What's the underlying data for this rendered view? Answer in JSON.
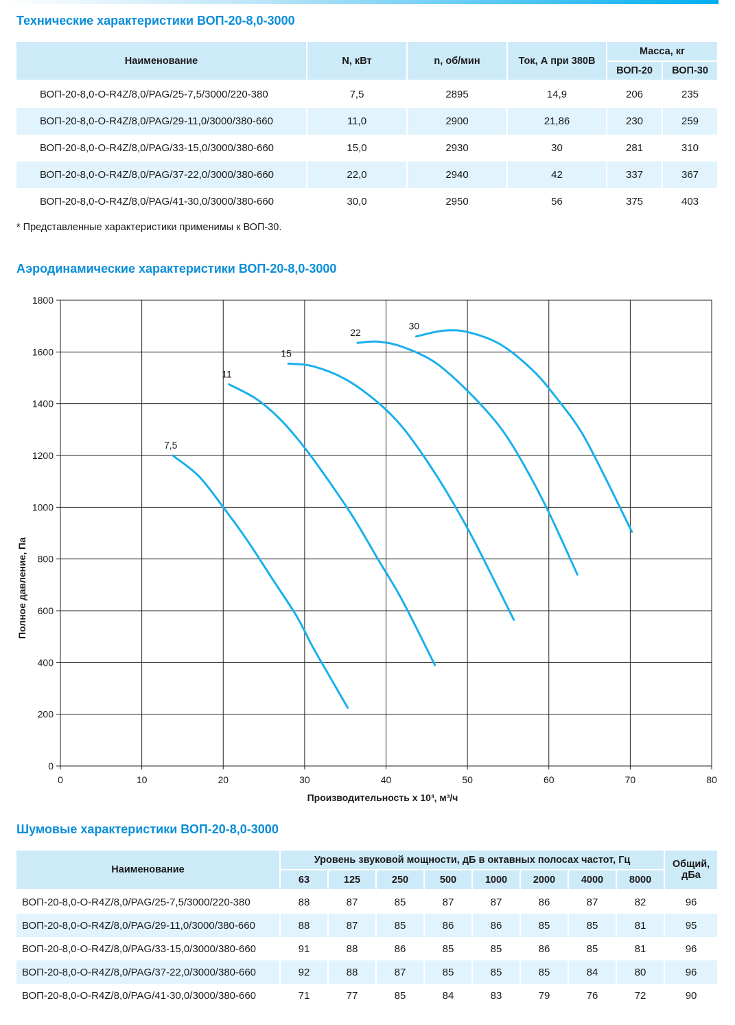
{
  "tech": {
    "title": "Технические характеристики ВОП-20-8,0-3000",
    "headers": {
      "name": "Наименование",
      "power": "N, кВт",
      "rpm": "n, об/мин",
      "current": "Ток, А при 380В",
      "mass": "Масса, кг",
      "mass20": "ВОП-20",
      "mass30": "ВОП-30"
    },
    "rows": [
      {
        "name": "ВОП-20-8,0-О-R4Z/8,0/PAG/25-7,5/3000/220-380",
        "power": "7,5",
        "rpm": "2895",
        "current": "14,9",
        "m20": "206",
        "m30": "235"
      },
      {
        "name": "ВОП-20-8,0-О-R4Z/8,0/PAG/29-11,0/3000/380-660",
        "power": "11,0",
        "rpm": "2900",
        "current": "21,86",
        "m20": "230",
        "m30": "259"
      },
      {
        "name": "ВОП-20-8,0-О-R4Z/8,0/PAG/33-15,0/3000/380-660",
        "power": "15,0",
        "rpm": "2930",
        "current": "30",
        "m20": "281",
        "m30": "310"
      },
      {
        "name": "ВОП-20-8,0-О-R4Z/8,0/PAG/37-22,0/3000/380-660",
        "power": "22,0",
        "rpm": "2940",
        "current": "42",
        "m20": "337",
        "m30": "367"
      },
      {
        "name": "ВОП-20-8,0-О-R4Z/8,0/PAG/41-30,0/3000/380-660",
        "power": "30,0",
        "rpm": "2950",
        "current": "56",
        "m20": "375",
        "m30": "403"
      }
    ],
    "footnote": "* Представленные характеристики применимы к ВОП-30."
  },
  "aero": {
    "title": "Аэродинамические характеристики ВОП-20-8,0-3000"
  },
  "chart_data": {
    "type": "line",
    "xlabel": "Производительность х 10³, м³/ч",
    "ylabel": "Полное давление, Па",
    "xlim": [
      0,
      80
    ],
    "ylim": [
      0,
      1800
    ],
    "xticks": [
      "0",
      "10",
      "20",
      "30",
      "40",
      "50",
      "60",
      "70",
      "80"
    ],
    "yticks": [
      "0",
      "200",
      "400",
      "600",
      "800",
      "1000",
      "1200",
      "1400",
      "1600",
      "1800"
    ],
    "grid": true,
    "line_color": "#1ab0ec",
    "series": [
      {
        "name": "7,5",
        "x": [
          13.8,
          17,
          20,
          23,
          26,
          29,
          31,
          33,
          35.3
        ],
        "y": [
          1200,
          1120,
          1000,
          870,
          725,
          580,
          460,
          350,
          225
        ]
      },
      {
        "name": "11",
        "x": [
          20.7,
          24,
          27,
          30,
          33,
          36,
          39,
          42,
          46
        ],
        "y": [
          1475,
          1420,
          1340,
          1230,
          1100,
          960,
          800,
          640,
          390
        ]
      },
      {
        "name": "15",
        "x": [
          28,
          31,
          35,
          39,
          42,
          45,
          48,
          51,
          55.7
        ],
        "y": [
          1555,
          1545,
          1495,
          1405,
          1310,
          1180,
          1030,
          860,
          565
        ]
      },
      {
        "name": "22",
        "x": [
          36.5,
          39,
          42,
          46,
          50,
          54,
          57,
          60,
          63.5
        ],
        "y": [
          1635,
          1640,
          1620,
          1560,
          1450,
          1310,
          1160,
          980,
          740
        ]
      },
      {
        "name": "30",
        "x": [
          43.7,
          47,
          50,
          54,
          58,
          61,
          64,
          67,
          70.2
        ],
        "y": [
          1660,
          1682,
          1677,
          1630,
          1530,
          1420,
          1290,
          1110,
          905
        ]
      }
    ]
  },
  "noise": {
    "title": "Шумовые характеристики ВОП-20-8,0-3000",
    "headers": {
      "name": "Наименование",
      "level": "Уровень звуковой мощности, дБ в октавных полосах частот, Гц",
      "total": "Общий, дБа",
      "freqs": [
        "63",
        "125",
        "250",
        "500",
        "1000",
        "2000",
        "4000",
        "8000"
      ]
    },
    "rows": [
      {
        "name": "ВОП-20-8,0-О-R4Z/8,0/PAG/25-7,5/3000/220-380",
        "values": [
          "88",
          "87",
          "85",
          "87",
          "87",
          "86",
          "87",
          "82"
        ],
        "total": "96"
      },
      {
        "name": "ВОП-20-8,0-О-R4Z/8,0/PAG/29-11,0/3000/380-660",
        "values": [
          "88",
          "87",
          "85",
          "86",
          "86",
          "85",
          "85",
          "81"
        ],
        "total": "95"
      },
      {
        "name": "ВОП-20-8,0-О-R4Z/8,0/PAG/33-15,0/3000/380-660",
        "values": [
          "91",
          "88",
          "86",
          "85",
          "85",
          "86",
          "85",
          "81"
        ],
        "total": "96"
      },
      {
        "name": "ВОП-20-8,0-О-R4Z/8,0/PAG/37-22,0/3000/380-660",
        "values": [
          "92",
          "88",
          "87",
          "85",
          "85",
          "85",
          "84",
          "80"
        ],
        "total": "96"
      },
      {
        "name": "ВОП-20-8,0-О-R4Z/8,0/PAG/41-30,0/3000/380-660",
        "values": [
          "71",
          "77",
          "85",
          "84",
          "83",
          "79",
          "76",
          "72"
        ],
        "total": "90"
      }
    ]
  }
}
